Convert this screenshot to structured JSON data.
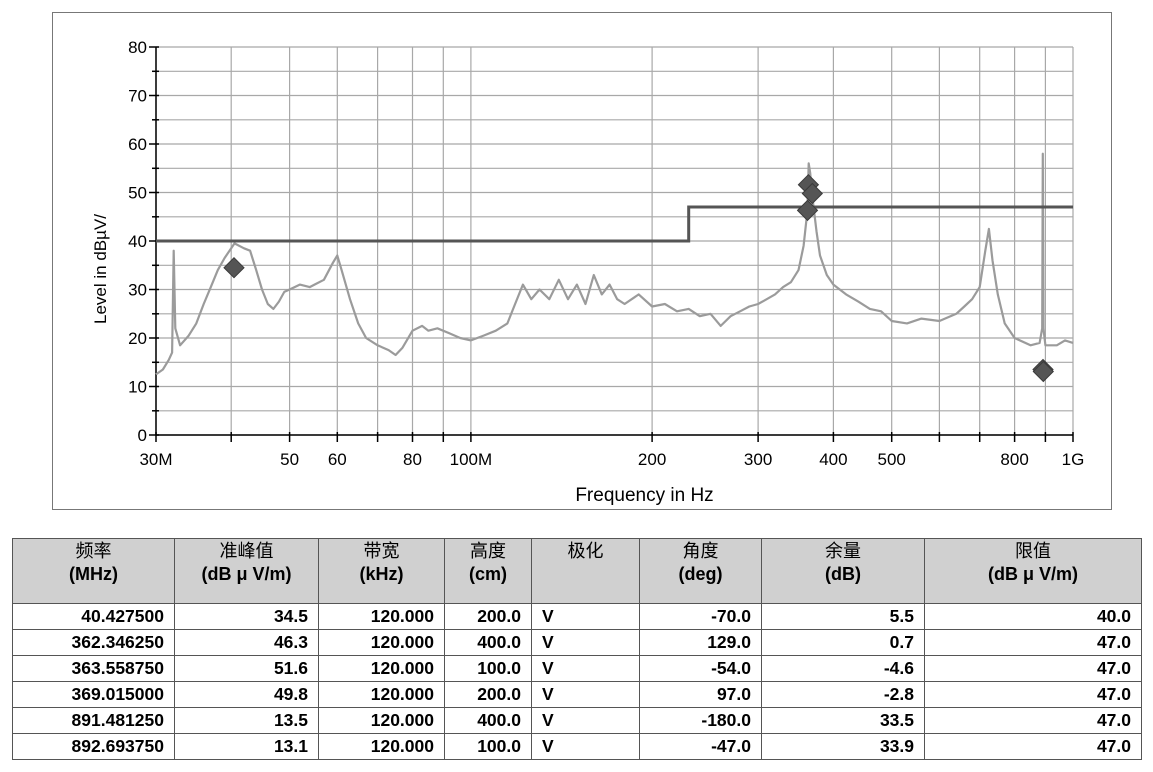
{
  "chart_data": {
    "type": "line",
    "xlabel": "Frequency in Hz",
    "ylabel": "Level in dBµV/",
    "x_scale": "log",
    "xlim": [
      30,
      1000
    ],
    "ylim": [
      0,
      80
    ],
    "grid": true,
    "yticks": [
      0,
      10,
      20,
      30,
      40,
      50,
      60,
      70,
      80
    ],
    "xticks": [
      {
        "value": 30,
        "label": "30M"
      },
      {
        "value": 50,
        "label": "50"
      },
      {
        "value": 60,
        "label": "60"
      },
      {
        "value": 80,
        "label": "80"
      },
      {
        "value": 100,
        "label": "100M"
      },
      {
        "value": 200,
        "label": "200"
      },
      {
        "value": 300,
        "label": "300"
      },
      {
        "value": 400,
        "label": "400"
      },
      {
        "value": 500,
        "label": "500"
      },
      {
        "value": 800,
        "label": "800"
      },
      {
        "value": 1000,
        "label": "1G"
      }
    ],
    "x_gridlines": [
      30,
      40,
      50,
      60,
      70,
      80,
      90,
      100,
      200,
      300,
      400,
      500,
      600,
      700,
      800,
      900,
      1000
    ],
    "series": [
      {
        "kind": "spectrum",
        "color": "#9b9b9b",
        "points": [
          [
            30,
            12.5
          ],
          [
            30.8,
            13.5
          ],
          [
            31.5,
            15.5
          ],
          [
            31.9,
            17
          ],
          [
            32.1,
            38
          ],
          [
            32.3,
            22
          ],
          [
            32.9,
            18.5
          ],
          [
            34,
            20.5
          ],
          [
            35,
            23
          ],
          [
            36,
            27
          ],
          [
            37,
            30.5
          ],
          [
            38,
            34
          ],
          [
            39,
            36.5
          ],
          [
            40,
            38.5
          ],
          [
            40.5,
            39.5
          ],
          [
            42,
            38.5
          ],
          [
            43,
            38
          ],
          [
            44,
            34
          ],
          [
            45,
            30
          ],
          [
            46,
            27
          ],
          [
            47,
            26
          ],
          [
            48,
            27.5
          ],
          [
            49,
            29.5
          ],
          [
            50,
            30
          ],
          [
            52,
            31
          ],
          [
            54,
            30.5
          ],
          [
            55,
            31
          ],
          [
            57,
            32
          ],
          [
            59,
            35.5
          ],
          [
            60,
            37
          ],
          [
            61,
            34
          ],
          [
            63,
            28
          ],
          [
            65,
            23
          ],
          [
            67,
            20
          ],
          [
            70,
            18.5
          ],
          [
            73,
            17.5
          ],
          [
            75,
            16.5
          ],
          [
            77,
            18
          ],
          [
            80,
            21.5
          ],
          [
            83,
            22.5
          ],
          [
            85,
            21.5
          ],
          [
            88,
            22
          ],
          [
            92,
            21
          ],
          [
            96,
            20
          ],
          [
            100,
            19.5
          ],
          [
            105,
            20.5
          ],
          [
            110,
            21.5
          ],
          [
            115,
            23
          ],
          [
            118,
            26.5
          ],
          [
            122,
            31
          ],
          [
            126,
            28
          ],
          [
            130,
            30
          ],
          [
            135,
            28
          ],
          [
            140,
            32
          ],
          [
            145,
            28
          ],
          [
            150,
            31
          ],
          [
            155,
            27
          ],
          [
            160,
            33
          ],
          [
            165,
            29
          ],
          [
            170,
            31
          ],
          [
            175,
            28
          ],
          [
            180,
            27
          ],
          [
            190,
            29
          ],
          [
            200,
            26.5
          ],
          [
            210,
            27
          ],
          [
            220,
            25.5
          ],
          [
            230,
            26
          ],
          [
            240,
            24.5
          ],
          [
            250,
            25
          ],
          [
            260,
            22.5
          ],
          [
            270,
            24.5
          ],
          [
            280,
            25.5
          ],
          [
            290,
            26.5
          ],
          [
            300,
            27
          ],
          [
            310,
            28
          ],
          [
            320,
            29
          ],
          [
            330,
            30.5
          ],
          [
            340,
            31.5
          ],
          [
            350,
            34
          ],
          [
            357,
            39
          ],
          [
            362,
            46
          ],
          [
            364,
            56
          ],
          [
            366,
            54
          ],
          [
            370,
            48
          ],
          [
            375,
            42
          ],
          [
            380,
            37
          ],
          [
            390,
            33
          ],
          [
            400,
            31
          ],
          [
            420,
            29
          ],
          [
            440,
            27.5
          ],
          [
            460,
            26
          ],
          [
            480,
            25.5
          ],
          [
            500,
            23.5
          ],
          [
            530,
            23
          ],
          [
            560,
            24
          ],
          [
            600,
            23.5
          ],
          [
            640,
            25
          ],
          [
            660,
            26.5
          ],
          [
            680,
            28
          ],
          [
            700,
            30.5
          ],
          [
            715,
            38
          ],
          [
            725,
            42.5
          ],
          [
            735,
            36
          ],
          [
            750,
            29
          ],
          [
            770,
            23
          ],
          [
            800,
            20
          ],
          [
            850,
            18.5
          ],
          [
            880,
            19
          ],
          [
            889,
            22
          ],
          [
            891,
            58
          ],
          [
            893,
            22
          ],
          [
            900,
            18.5
          ],
          [
            940,
            18.5
          ],
          [
            970,
            19.5
          ],
          [
            1000,
            19
          ]
        ]
      },
      {
        "kind": "limit",
        "color": "#555555",
        "points": [
          [
            30,
            40
          ],
          [
            230,
            40
          ],
          [
            230,
            47
          ],
          [
            1000,
            47
          ]
        ]
      }
    ],
    "markers": [
      {
        "x": 40.4275,
        "y": 34.5
      },
      {
        "x": 362.34625,
        "y": 46.3
      },
      {
        "x": 363.55875,
        "y": 51.6
      },
      {
        "x": 369.015,
        "y": 49.8
      },
      {
        "x": 891.48125,
        "y": 13.5
      },
      {
        "x": 892.69375,
        "y": 13.1
      }
    ],
    "marker_color": "#555555"
  },
  "table": {
    "headers": [
      {
        "zh": "频率",
        "unit": "(MHz)"
      },
      {
        "zh": "准峰值",
        "unit": "(dB μ V/m)"
      },
      {
        "zh": "带宽",
        "unit": "(kHz)"
      },
      {
        "zh": "高度",
        "unit": "(cm)"
      },
      {
        "zh": "极化",
        "unit": ""
      },
      {
        "zh": "角度",
        "unit": "(deg)"
      },
      {
        "zh": "余量",
        "unit": "(dB)"
      },
      {
        "zh": "限值",
        "unit": "(dB μ V/m)"
      }
    ],
    "rows": [
      [
        "40.427500",
        "34.5",
        "120.000",
        "200.0",
        "V",
        "-70.0",
        "5.5",
        "40.0"
      ],
      [
        "362.346250",
        "46.3",
        "120.000",
        "400.0",
        "V",
        "129.0",
        "0.7",
        "47.0"
      ],
      [
        "363.558750",
        "51.6",
        "120.000",
        "100.0",
        "V",
        "-54.0",
        "-4.6",
        "47.0"
      ],
      [
        "369.015000",
        "49.8",
        "120.000",
        "200.0",
        "V",
        "97.0",
        "-2.8",
        "47.0"
      ],
      [
        "891.481250",
        "13.5",
        "120.000",
        "400.0",
        "V",
        "-180.0",
        "33.5",
        "47.0"
      ],
      [
        "892.693750",
        "13.1",
        "120.000",
        "100.0",
        "V",
        "-47.0",
        "33.9",
        "47.0"
      ]
    ]
  }
}
